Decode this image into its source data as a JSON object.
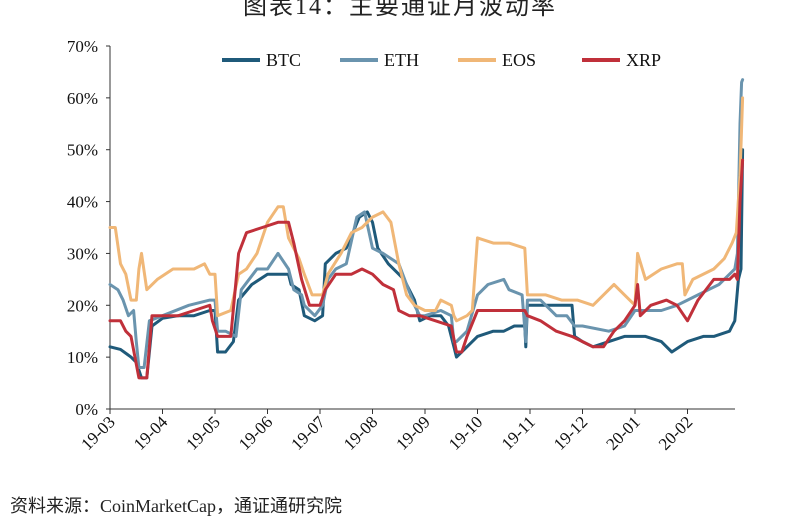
{
  "figure_title": "图表14：主要通证月波动率",
  "source_note": "资料来源：CoinMarketCap，通证通研究院",
  "chart_data": {
    "type": "line",
    "title": "",
    "xlabel": "",
    "ylabel": "",
    "ylim": [
      0,
      70
    ],
    "y_ticks": [
      "0%",
      "10%",
      "20%",
      "30%",
      "40%",
      "50%",
      "60%",
      "70%"
    ],
    "x_ticks": [
      "19-03",
      "19-04",
      "19-05",
      "19-06",
      "19-07",
      "19-08",
      "19-09",
      "19-10",
      "19-11",
      "19-12",
      "20-01",
      "20-02"
    ],
    "x_range": [
      0,
      12.1
    ],
    "grid": false,
    "legend_position": "top",
    "series": [
      {
        "name": "BTC",
        "color": "#1f5a7a",
        "points": [
          [
            0,
            12
          ],
          [
            0.2,
            11.5
          ],
          [
            0.4,
            10
          ],
          [
            0.5,
            9
          ],
          [
            0.6,
            6
          ],
          [
            0.7,
            6
          ],
          [
            0.8,
            16
          ],
          [
            1.0,
            17.5
          ],
          [
            1.3,
            18
          ],
          [
            1.6,
            18
          ],
          [
            1.9,
            19
          ],
          [
            2.0,
            19
          ],
          [
            2.05,
            11
          ],
          [
            2.2,
            11
          ],
          [
            2.35,
            13
          ],
          [
            2.45,
            21
          ],
          [
            2.7,
            24
          ],
          [
            3.0,
            26
          ],
          [
            3.2,
            26
          ],
          [
            3.4,
            26
          ],
          [
            3.45,
            24
          ],
          [
            3.6,
            23
          ],
          [
            3.7,
            18
          ],
          [
            3.9,
            17
          ],
          [
            4.05,
            18
          ],
          [
            4.1,
            28
          ],
          [
            4.3,
            30
          ],
          [
            4.5,
            31
          ],
          [
            4.75,
            37
          ],
          [
            4.9,
            38
          ],
          [
            5.0,
            36
          ],
          [
            5.1,
            31
          ],
          [
            5.3,
            28
          ],
          [
            5.5,
            26
          ],
          [
            5.6,
            25
          ],
          [
            5.8,
            21
          ],
          [
            5.9,
            17
          ],
          [
            6.1,
            18
          ],
          [
            6.3,
            18
          ],
          [
            6.45,
            16
          ],
          [
            6.55,
            12
          ],
          [
            6.6,
            10
          ],
          [
            6.8,
            12
          ],
          [
            7.0,
            14
          ],
          [
            7.3,
            15
          ],
          [
            7.5,
            15
          ],
          [
            7.7,
            16
          ],
          [
            7.9,
            16
          ],
          [
            7.92,
            12
          ],
          [
            7.95,
            20
          ],
          [
            8.3,
            20
          ],
          [
            8.6,
            20
          ],
          [
            8.8,
            20
          ],
          [
            8.85,
            14
          ],
          [
            9.0,
            13
          ],
          [
            9.2,
            12
          ],
          [
            9.5,
            13
          ],
          [
            9.8,
            14
          ],
          [
            10.0,
            14
          ],
          [
            10.2,
            14
          ],
          [
            10.5,
            13
          ],
          [
            10.7,
            11
          ],
          [
            11.0,
            13
          ],
          [
            11.3,
            14
          ],
          [
            11.5,
            14
          ],
          [
            11.8,
            15
          ],
          [
            11.85,
            16
          ],
          [
            11.9,
            17
          ],
          [
            11.97,
            25
          ],
          [
            12.02,
            27
          ],
          [
            12.05,
            50
          ]
        ]
      },
      {
        "name": "ETH",
        "color": "#6a94ae",
        "points": [
          [
            0,
            24
          ],
          [
            0.15,
            23
          ],
          [
            0.25,
            21
          ],
          [
            0.35,
            18
          ],
          [
            0.45,
            19
          ],
          [
            0.5,
            13
          ],
          [
            0.55,
            8
          ],
          [
            0.65,
            8
          ],
          [
            0.75,
            17
          ],
          [
            1.0,
            18
          ],
          [
            1.5,
            20
          ],
          [
            1.9,
            21
          ],
          [
            2.0,
            21
          ],
          [
            2.05,
            15
          ],
          [
            2.2,
            15
          ],
          [
            2.4,
            14
          ],
          [
            2.5,
            23
          ],
          [
            2.8,
            27
          ],
          [
            3.0,
            27
          ],
          [
            3.2,
            30
          ],
          [
            3.4,
            27
          ],
          [
            3.5,
            23
          ],
          [
            3.65,
            22
          ],
          [
            3.7,
            20
          ],
          [
            3.9,
            18
          ],
          [
            4.05,
            20
          ],
          [
            4.15,
            25
          ],
          [
            4.3,
            27
          ],
          [
            4.5,
            28
          ],
          [
            4.7,
            37
          ],
          [
            4.85,
            38
          ],
          [
            5.0,
            31
          ],
          [
            5.2,
            30
          ],
          [
            5.5,
            28
          ],
          [
            5.65,
            24
          ],
          [
            5.8,
            20
          ],
          [
            5.9,
            18
          ],
          [
            6.0,
            18
          ],
          [
            6.3,
            19
          ],
          [
            6.5,
            18
          ],
          [
            6.55,
            13
          ],
          [
            6.6,
            13
          ],
          [
            6.8,
            15
          ],
          [
            7.0,
            22
          ],
          [
            7.2,
            24
          ],
          [
            7.5,
            25
          ],
          [
            7.6,
            23
          ],
          [
            7.85,
            22
          ],
          [
            7.92,
            13
          ],
          [
            7.95,
            21
          ],
          [
            8.2,
            21
          ],
          [
            8.5,
            18
          ],
          [
            8.7,
            18
          ],
          [
            8.85,
            16
          ],
          [
            9.0,
            16
          ],
          [
            9.5,
            15
          ],
          [
            9.8,
            16
          ],
          [
            10.0,
            19
          ],
          [
            10.2,
            19
          ],
          [
            10.5,
            19
          ],
          [
            10.8,
            20
          ],
          [
            11.0,
            21
          ],
          [
            11.2,
            22
          ],
          [
            11.4,
            23
          ],
          [
            11.6,
            24
          ],
          [
            11.8,
            26
          ],
          [
            11.9,
            27
          ],
          [
            11.95,
            30
          ],
          [
            12.0,
            55
          ],
          [
            12.03,
            63
          ],
          [
            12.05,
            63.5
          ]
        ]
      },
      {
        "name": "EOS",
        "color": "#f0b777",
        "points": [
          [
            0,
            35
          ],
          [
            0.1,
            35
          ],
          [
            0.2,
            28
          ],
          [
            0.3,
            26
          ],
          [
            0.4,
            21
          ],
          [
            0.5,
            21
          ],
          [
            0.55,
            27
          ],
          [
            0.6,
            30
          ],
          [
            0.7,
            23
          ],
          [
            0.9,
            25
          ],
          [
            1.2,
            27
          ],
          [
            1.4,
            27
          ],
          [
            1.6,
            27
          ],
          [
            1.8,
            28
          ],
          [
            1.9,
            26
          ],
          [
            2.0,
            26
          ],
          [
            2.05,
            18
          ],
          [
            2.3,
            19
          ],
          [
            2.45,
            26
          ],
          [
            2.6,
            27
          ],
          [
            2.8,
            30
          ],
          [
            3.0,
            36
          ],
          [
            3.2,
            39
          ],
          [
            3.3,
            39
          ],
          [
            3.4,
            33
          ],
          [
            3.6,
            29
          ],
          [
            3.7,
            26
          ],
          [
            3.85,
            22
          ],
          [
            4.05,
            22
          ],
          [
            4.15,
            26
          ],
          [
            4.4,
            30
          ],
          [
            4.6,
            34
          ],
          [
            4.8,
            35
          ],
          [
            5.0,
            37
          ],
          [
            5.2,
            38
          ],
          [
            5.35,
            36
          ],
          [
            5.5,
            28
          ],
          [
            5.65,
            22
          ],
          [
            5.8,
            20
          ],
          [
            6.0,
            19
          ],
          [
            6.2,
            19
          ],
          [
            6.3,
            21
          ],
          [
            6.5,
            20
          ],
          [
            6.55,
            18
          ],
          [
            6.6,
            17
          ],
          [
            6.8,
            18
          ],
          [
            6.9,
            19
          ],
          [
            7.0,
            33
          ],
          [
            7.3,
            32
          ],
          [
            7.6,
            32
          ],
          [
            7.9,
            31
          ],
          [
            7.95,
            22
          ],
          [
            8.3,
            22
          ],
          [
            8.6,
            21
          ],
          [
            8.9,
            21
          ],
          [
            9.2,
            20
          ],
          [
            9.4,
            22
          ],
          [
            9.6,
            24
          ],
          [
            9.8,
            22
          ],
          [
            10.0,
            20
          ],
          [
            10.05,
            30
          ],
          [
            10.2,
            25
          ],
          [
            10.5,
            27
          ],
          [
            10.8,
            28
          ],
          [
            10.9,
            28
          ],
          [
            10.95,
            22
          ],
          [
            11.1,
            25
          ],
          [
            11.5,
            27
          ],
          [
            11.7,
            29
          ],
          [
            11.85,
            32
          ],
          [
            11.93,
            34
          ],
          [
            12.0,
            45
          ],
          [
            12.05,
            60
          ]
        ]
      },
      {
        "name": "XRP",
        "color": "#c0303a",
        "points": [
          [
            0,
            17
          ],
          [
            0.2,
            17
          ],
          [
            0.3,
            15
          ],
          [
            0.4,
            14
          ],
          [
            0.55,
            6
          ],
          [
            0.7,
            6
          ],
          [
            0.8,
            18
          ],
          [
            1.0,
            18
          ],
          [
            1.3,
            18
          ],
          [
            1.6,
            19
          ],
          [
            1.9,
            20
          ],
          [
            1.95,
            17
          ],
          [
            2.05,
            14
          ],
          [
            2.3,
            14
          ],
          [
            2.45,
            30
          ],
          [
            2.6,
            34
          ],
          [
            2.9,
            35
          ],
          [
            3.2,
            36
          ],
          [
            3.4,
            36
          ],
          [
            3.5,
            32
          ],
          [
            3.65,
            25
          ],
          [
            3.8,
            20
          ],
          [
            3.9,
            20
          ],
          [
            4.0,
            20
          ],
          [
            4.1,
            23
          ],
          [
            4.3,
            26
          ],
          [
            4.5,
            26
          ],
          [
            4.6,
            26
          ],
          [
            4.8,
            27
          ],
          [
            5.0,
            26
          ],
          [
            5.2,
            24
          ],
          [
            5.4,
            23
          ],
          [
            5.5,
            19
          ],
          [
            5.7,
            18
          ],
          [
            5.9,
            18
          ],
          [
            6.2,
            17
          ],
          [
            6.5,
            16
          ],
          [
            6.6,
            11
          ],
          [
            6.7,
            11
          ],
          [
            6.8,
            14
          ],
          [
            7.0,
            19
          ],
          [
            7.3,
            19
          ],
          [
            7.5,
            19
          ],
          [
            7.7,
            19
          ],
          [
            7.9,
            19
          ],
          [
            7.95,
            18
          ],
          [
            8.2,
            17
          ],
          [
            8.5,
            15
          ],
          [
            8.8,
            14
          ],
          [
            9.0,
            13
          ],
          [
            9.2,
            12
          ],
          [
            9.4,
            12
          ],
          [
            9.6,
            15
          ],
          [
            9.8,
            17
          ],
          [
            10.0,
            20
          ],
          [
            10.05,
            24
          ],
          [
            10.1,
            18
          ],
          [
            10.3,
            20
          ],
          [
            10.6,
            21
          ],
          [
            10.8,
            20
          ],
          [
            11.0,
            17
          ],
          [
            11.2,
            21
          ],
          [
            11.5,
            25
          ],
          [
            11.8,
            25
          ],
          [
            11.9,
            26
          ],
          [
            11.95,
            25
          ],
          [
            12.0,
            40
          ],
          [
            12.05,
            48
          ]
        ]
      }
    ]
  }
}
